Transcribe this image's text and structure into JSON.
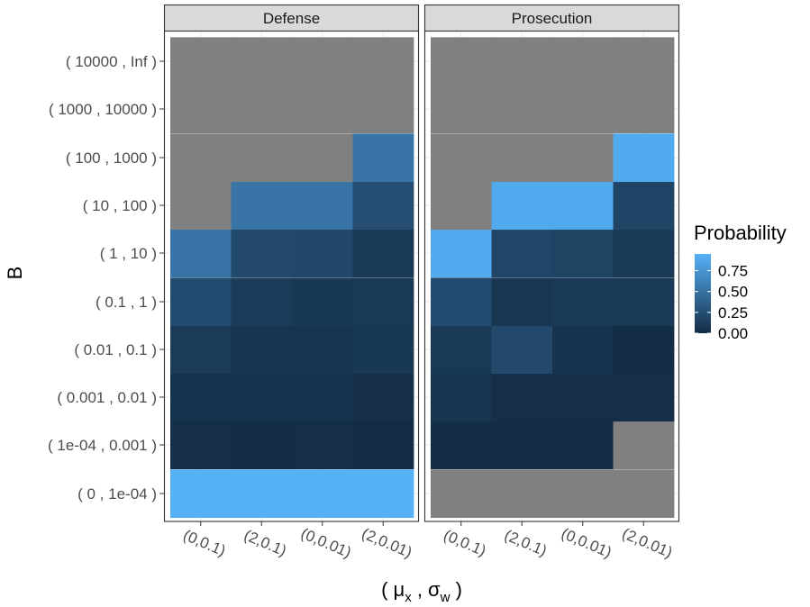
{
  "chart_data": {
    "type": "heatmap",
    "ylabel": "B",
    "xlabel": "( μx , σw )",
    "xlabel_parts": {
      "open": "( ",
      "mu": "μ",
      "mu_sub": "x",
      "sep": " , ",
      "sigma": "σ",
      "sigma_sub": "w",
      "close": " )"
    },
    "x_categories": [
      "(0,0.1)",
      "(2,0.1)",
      "(0,0.01)",
      "(2,0.01)"
    ],
    "y_categories": [
      "( 0 , 1e-04 )",
      "( 1e-04 , 0.001 )",
      "( 0.001 , 0.01 )",
      "( 0.01 , 0.1 )",
      "( 0.1 , 1 )",
      "( 1 , 10 )",
      "( 10 , 100 )",
      "( 100 , 1000 )",
      "( 1000 , 10000 )",
      "( 10000 , Inf )"
    ],
    "na_color": "#808080",
    "legend": {
      "title": "Probability",
      "position": "right",
      "breaks": [
        0.0,
        0.25,
        0.5,
        0.75
      ],
      "break_labels": [
        "0.00",
        "0.25",
        "0.50",
        "0.75"
      ],
      "limits": [
        0.0,
        0.95
      ],
      "low_color": "#132B43",
      "high_color": "#56B1F7"
    },
    "panels": [
      {
        "name": "Defense",
        "values": [
          [
            0.95,
            0.95,
            0.95,
            0.95
          ],
          [
            0.03,
            0.02,
            0.03,
            0.01
          ],
          [
            0.05,
            0.05,
            0.05,
            0.03
          ],
          [
            0.11,
            0.07,
            0.07,
            0.09
          ],
          [
            0.23,
            0.12,
            0.09,
            0.1
          ],
          [
            0.52,
            0.21,
            0.2,
            0.1
          ],
          [
            null,
            0.52,
            0.52,
            0.25
          ],
          [
            null,
            null,
            null,
            0.52
          ],
          [
            null,
            null,
            null,
            null
          ],
          [
            null,
            null,
            null,
            null
          ]
        ]
      },
      {
        "name": "Prosecution",
        "values": [
          [
            null,
            null,
            null,
            null
          ],
          [
            0.02,
            0.02,
            0.02,
            null
          ],
          [
            0.07,
            0.03,
            0.03,
            0.03
          ],
          [
            0.1,
            0.21,
            0.06,
            0.02
          ],
          [
            0.23,
            0.08,
            0.1,
            0.1
          ],
          [
            0.9,
            0.19,
            0.17,
            0.1
          ],
          [
            null,
            0.9,
            0.9,
            0.18
          ],
          [
            null,
            null,
            null,
            0.9
          ],
          [
            null,
            null,
            null,
            null
          ],
          [
            null,
            null,
            null,
            null
          ]
        ]
      }
    ]
  }
}
